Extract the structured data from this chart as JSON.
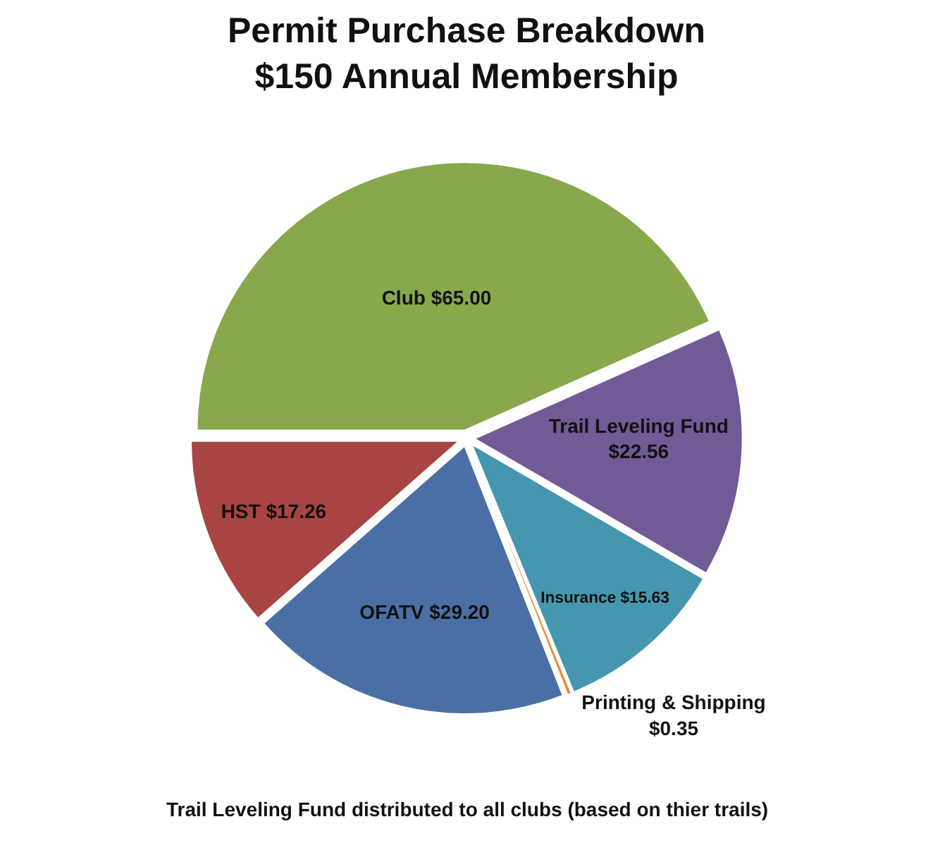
{
  "chart_data": {
    "type": "pie",
    "title": "Permit Purchase Breakdown",
    "subtitle": "$150 Annual Membership",
    "categories": [
      "Club",
      "Trail Leveling Fund",
      "Insurance",
      "Printing & Shipping",
      "OFATV",
      "HST"
    ],
    "values": [
      65.0,
      22.56,
      15.63,
      0.35,
      29.2,
      17.26
    ],
    "colors": [
      "#88a84c",
      "#725a96",
      "#4596ae",
      "#e8872f",
      "#4a6fa5",
      "#a84442"
    ],
    "value_labels": [
      "$65.00",
      "$22.56",
      "$15.63",
      "$0.35",
      "$29.20",
      "$17.26"
    ],
    "annotations": [
      "Trail Leveling Fund distributed to all clubs (based on thier trails)"
    ]
  }
}
